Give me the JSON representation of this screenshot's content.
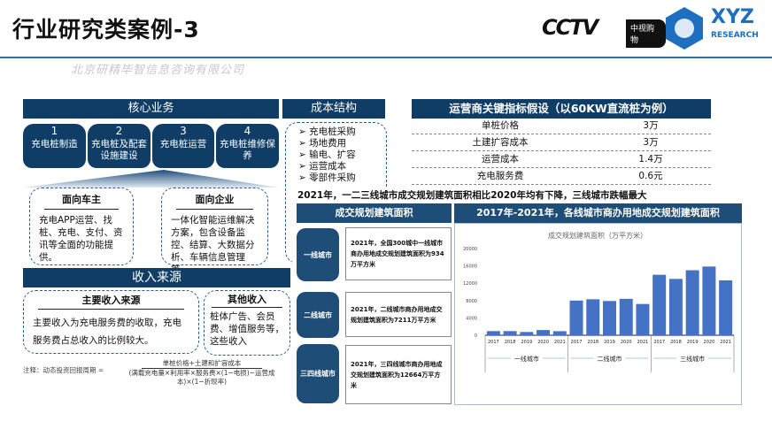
{
  "header": {
    "title": "行业研究类案例-3",
    "watermark": "北京研精毕智信息咨询有限公司",
    "logo_cctv": "CCTV",
    "logo_cctv_sub": "中视购物",
    "logo_xyz": "XYZ",
    "logo_xyz_sub": "RESEARCH",
    "accent": "#2a6db0"
  },
  "core": {
    "title": "核心业务",
    "tabs": [
      {
        "num": "1",
        "label": "充电桩制造"
      },
      {
        "num": "2",
        "label": "充电桩及配套设施建设"
      },
      {
        "num": "3",
        "label": "充电桩运营"
      },
      {
        "num": "4",
        "label": "充电桩维修保养"
      }
    ],
    "owner": {
      "title": "面向车主",
      "text": "充电APP运营、找桩、充电、支付、资讯等全面的功能提供。"
    },
    "enterprise": {
      "title": "面向企业",
      "text": "一体化智能运维解决方案，包含设备监控、结算、大数据分析、车辆信息管理等。"
    }
  },
  "cost": {
    "title": "成本结构",
    "items": [
      "充电桩采购",
      "场地费用",
      "输电、扩容",
      "运营成本",
      "零部件采购"
    ]
  },
  "income": {
    "title": "收入来源",
    "main": {
      "title": "主要收入来源",
      "text": "主要收入为充电服务费的收取，充电服务费占总收入的比例较大。"
    },
    "other": {
      "title": "其他收入",
      "text": "桩体广告、会员费、增值服务等，这些收入"
    }
  },
  "note": {
    "label": "注释：动态投资回报周期 =",
    "numerator": "单桩价格+土建和扩容成本",
    "denominator": "(满载充电量×利用率×服务费×(1−电损)−运营成本)×(1−折现率)"
  },
  "kpi": {
    "title": "运营商关键指标假设（以60KW直流桩为例）",
    "rows": [
      {
        "label": "单桩价格",
        "value": "3万"
      },
      {
        "label": "土建扩容成本",
        "value": "3万"
      },
      {
        "label": "运营成本",
        "value": "1.4万"
      },
      {
        "label": "充电服务费",
        "value": "0.6元"
      }
    ]
  },
  "overlay": {
    "headline": "2021年，一二三线城市成交规划建筑面积相比2020年均有下降，三线城市跌幅最大",
    "left_title": "成交规划建筑面积",
    "right_title": "2017年-2021年，各线城市商办用地成交规划建筑面积",
    "cities": [
      {
        "name": "一线城市",
        "text": "2021年，全国300城中一线城市商办用地成交规划建筑面积为934万平方米"
      },
      {
        "name": "二线城市",
        "text": "2021年，二线城市商办用地成交规划建筑面积为7211万平方米"
      },
      {
        "name": "三四线城市",
        "text": "2021年，三四线城市商办用地成交规划建筑面积为12664万平方米"
      }
    ]
  },
  "chart_data": {
    "type": "bar",
    "title": "成交规划建筑面积（万平方米）",
    "ylim": [
      0,
      20000
    ],
    "yticks": [
      "0",
      "4000",
      "8000",
      "12000",
      "16000",
      "20000"
    ],
    "bar_color": "#4472c4",
    "groups": [
      "一线城市",
      "二线城市",
      "三线城市"
    ],
    "categories": [
      "2017",
      "2018",
      "2019",
      "2020",
      "2021"
    ],
    "series": [
      {
        "group": "一线城市",
        "values": [
          950,
          950,
          750,
          1200,
          934
        ]
      },
      {
        "group": "二线城市",
        "values": [
          8000,
          8300,
          7900,
          8400,
          7211
        ]
      },
      {
        "group": "三线城市",
        "values": [
          13950,
          13000,
          15000,
          15850,
          12664
        ]
      }
    ]
  }
}
